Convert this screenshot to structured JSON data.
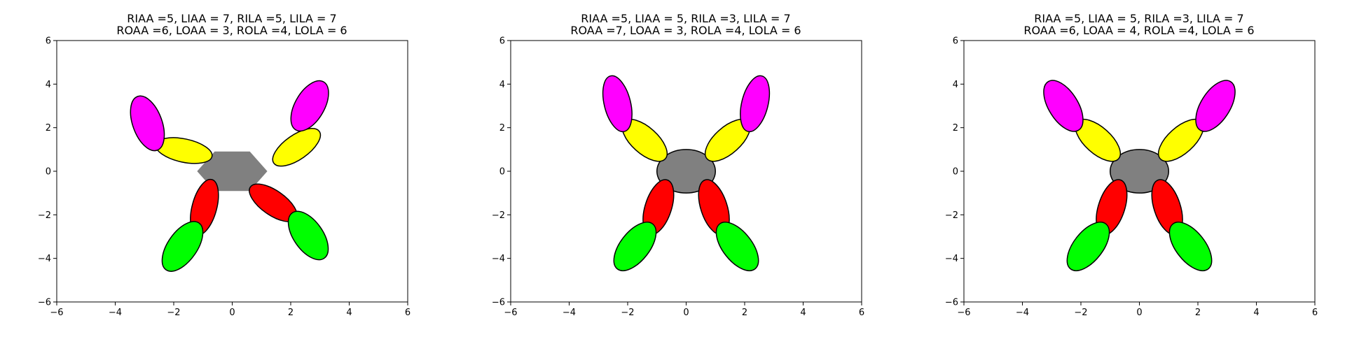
{
  "figure": {
    "panels": [
      {
        "title_line1": "RIAA =5, LIAA = 7, RILA =5, LILA = 7",
        "title_line2": "ROAA =6, LOAA = 3, ROLA =4, LOLA = 6",
        "xlim": [
          -6,
          6
        ],
        "ylim": [
          -6,
          6
        ],
        "xticks": [
          -6,
          -4,
          -2,
          0,
          2,
          4,
          6
        ],
        "yticks": [
          -6,
          -4,
          -2,
          0,
          2,
          4,
          6
        ],
        "xtick_labels": [
          "−6",
          "−4",
          "−2",
          "0",
          "2",
          "4",
          "6"
        ],
        "ytick_labels": [
          "−6",
          "−4",
          "−2",
          "0",
          "2",
          "4",
          "6"
        ],
        "body": {
          "shape": "hexagon",
          "cx": 0,
          "cy": 0,
          "rx": 1.2,
          "ry": 1.05,
          "color": "#808080",
          "outlined": false
        },
        "limbs": [
          {
            "color": "#ffff00",
            "cx": 2.2,
            "cy": 1.1,
            "rx": 0.95,
            "ry": 0.42,
            "angle": 35
          },
          {
            "color": "#ff00ff",
            "cx": 2.65,
            "cy": 3.0,
            "rx": 0.95,
            "ry": 0.5,
            "angle": 60
          },
          {
            "color": "#ffff00",
            "cx": -1.65,
            "cy": 0.95,
            "rx": 0.98,
            "ry": 0.4,
            "angle": -12
          },
          {
            "color": "#ff00ff",
            "cx": -2.9,
            "cy": 2.2,
            "rx": 0.98,
            "ry": 0.5,
            "angle": -70
          },
          {
            "color": "#ff0000",
            "cx": 1.4,
            "cy": -1.45,
            "rx": 0.95,
            "ry": 0.42,
            "angle": -35
          },
          {
            "color": "#00ff00",
            "cx": 2.6,
            "cy": -2.95,
            "rx": 0.95,
            "ry": 0.5,
            "angle": -55
          },
          {
            "color": "#ff0000",
            "cx": -0.95,
            "cy": -1.65,
            "rx": 0.98,
            "ry": 0.42,
            "angle": 75
          },
          {
            "color": "#00ff00",
            "cx": -1.7,
            "cy": -3.45,
            "rx": 0.98,
            "ry": 0.5,
            "angle": 55
          }
        ]
      },
      {
        "title_line1": "RIAA =5, LIAA = 5, RILA =3, LILA = 7",
        "title_line2": "ROAA =7, LOAA = 3, ROLA =4, LOLA = 6",
        "xlim": [
          -6,
          6
        ],
        "ylim": [
          -6,
          6
        ],
        "xticks": [
          -6,
          -4,
          -2,
          0,
          2,
          4,
          6
        ],
        "yticks": [
          -6,
          -4,
          -2,
          0,
          2,
          4,
          6
        ],
        "xtick_labels": [
          "−6",
          "−4",
          "−2",
          "0",
          "2",
          "4",
          "6"
        ],
        "ytick_labels": [
          "−6",
          "−4",
          "−2",
          "0",
          "2",
          "4",
          "6"
        ],
        "body": {
          "shape": "ellipse",
          "cx": 0,
          "cy": 0,
          "rx": 1.0,
          "ry": 1.0,
          "color": "#808080",
          "outlined": true
        },
        "limbs": [
          {
            "color": "#ffff00",
            "cx": 1.42,
            "cy": 1.42,
            "rx": 0.95,
            "ry": 0.45,
            "angle": 42
          },
          {
            "color": "#ff00ff",
            "cx": 2.35,
            "cy": 3.1,
            "rx": 0.98,
            "ry": 0.45,
            "angle": 76
          },
          {
            "color": "#ffff00",
            "cx": -1.42,
            "cy": 1.42,
            "rx": 0.95,
            "ry": 0.45,
            "angle": -42
          },
          {
            "color": "#ff00ff",
            "cx": -2.35,
            "cy": 3.1,
            "rx": 0.98,
            "ry": 0.45,
            "angle": -76
          },
          {
            "color": "#ff0000",
            "cx": 0.95,
            "cy": -1.65,
            "rx": 0.98,
            "ry": 0.45,
            "angle": -72
          },
          {
            "color": "#00ff00",
            "cx": 1.75,
            "cy": -3.45,
            "rx": 0.98,
            "ry": 0.5,
            "angle": -52
          },
          {
            "color": "#ff0000",
            "cx": -0.95,
            "cy": -1.65,
            "rx": 0.98,
            "ry": 0.45,
            "angle": 72
          },
          {
            "color": "#00ff00",
            "cx": -1.75,
            "cy": -3.45,
            "rx": 0.98,
            "ry": 0.5,
            "angle": 52
          }
        ]
      },
      {
        "title_line1": "RIAA =5, LIAA = 5, RILA =3, LILA = 7",
        "title_line2": "ROAA =6, LOAA = 4, ROLA =4, LOLA = 6",
        "xlim": [
          -6,
          6
        ],
        "ylim": [
          -6,
          6
        ],
        "xticks": [
          -6,
          -4,
          -2,
          0,
          2,
          4,
          6
        ],
        "yticks": [
          -6,
          -4,
          -2,
          0,
          2,
          4,
          6
        ],
        "xtick_labels": [
          "−6",
          "−4",
          "−2",
          "0",
          "2",
          "4",
          "6"
        ],
        "ytick_labels": [
          "−6",
          "−4",
          "−2",
          "0",
          "2",
          "4",
          "6"
        ],
        "body": {
          "shape": "ellipse",
          "cx": 0,
          "cy": 0,
          "rx": 1.0,
          "ry": 1.0,
          "color": "#808080",
          "outlined": true
        },
        "limbs": [
          {
            "color": "#ffff00",
            "cx": 1.42,
            "cy": 1.42,
            "rx": 0.95,
            "ry": 0.45,
            "angle": 42
          },
          {
            "color": "#ff00ff",
            "cx": 2.6,
            "cy": 3.0,
            "rx": 0.98,
            "ry": 0.5,
            "angle": 58
          },
          {
            "color": "#ffff00",
            "cx": -1.42,
            "cy": 1.42,
            "rx": 0.95,
            "ry": 0.45,
            "angle": -42
          },
          {
            "color": "#ff00ff",
            "cx": -2.6,
            "cy": 3.0,
            "rx": 0.98,
            "ry": 0.5,
            "angle": -58
          },
          {
            "color": "#ff0000",
            "cx": 0.95,
            "cy": -1.65,
            "rx": 0.98,
            "ry": 0.45,
            "angle": -72
          },
          {
            "color": "#00ff00",
            "cx": 1.75,
            "cy": -3.45,
            "rx": 0.98,
            "ry": 0.5,
            "angle": -52
          },
          {
            "color": "#ff0000",
            "cx": -0.95,
            "cy": -1.65,
            "rx": 0.98,
            "ry": 0.45,
            "angle": 72
          },
          {
            "color": "#00ff00",
            "cx": -1.75,
            "cy": -3.45,
            "rx": 0.98,
            "ry": 0.5,
            "angle": 52
          }
        ]
      }
    ]
  }
}
